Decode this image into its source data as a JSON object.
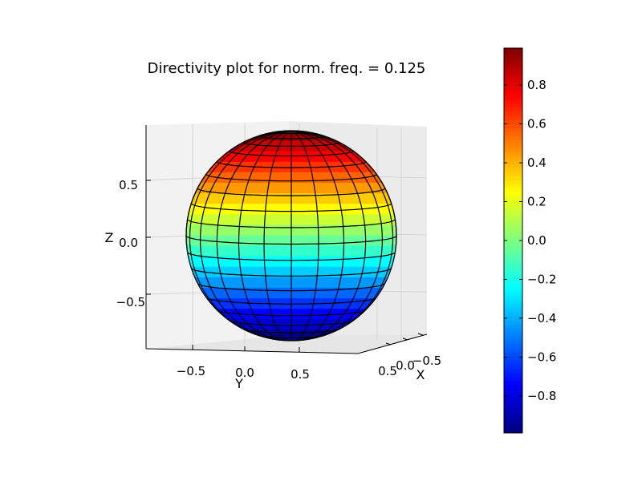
{
  "chart_data": {
    "type": "surface-3d",
    "title": "Directivity plot for norm. freq. = 0.125",
    "x_axis": {
      "label": "X",
      "ticks": [
        "0.5",
        "0.0",
        "−0.5"
      ]
    },
    "y_axis": {
      "label": "Y",
      "ticks": [
        "−0.5",
        "0.0",
        "0.5"
      ]
    },
    "z_axis": {
      "label": "Z",
      "ticks": [
        "0.5",
        "0.0",
        "−0.5"
      ]
    },
    "surface": {
      "shape": "unit sphere",
      "color_by": "z",
      "colormap": "jet",
      "z_range": [
        -1,
        1
      ]
    },
    "colorbar": {
      "range": [
        -0.99,
        0.99
      ],
      "ticks": [
        "−0.8",
        "−0.6",
        "−0.4",
        "−0.2",
        "0.0",
        "0.2",
        "0.4",
        "0.6",
        "0.8"
      ],
      "tick_values": [
        -0.8,
        -0.6,
        -0.4,
        -0.2,
        0.0,
        0.2,
        0.4,
        0.6,
        0.8
      ]
    }
  }
}
